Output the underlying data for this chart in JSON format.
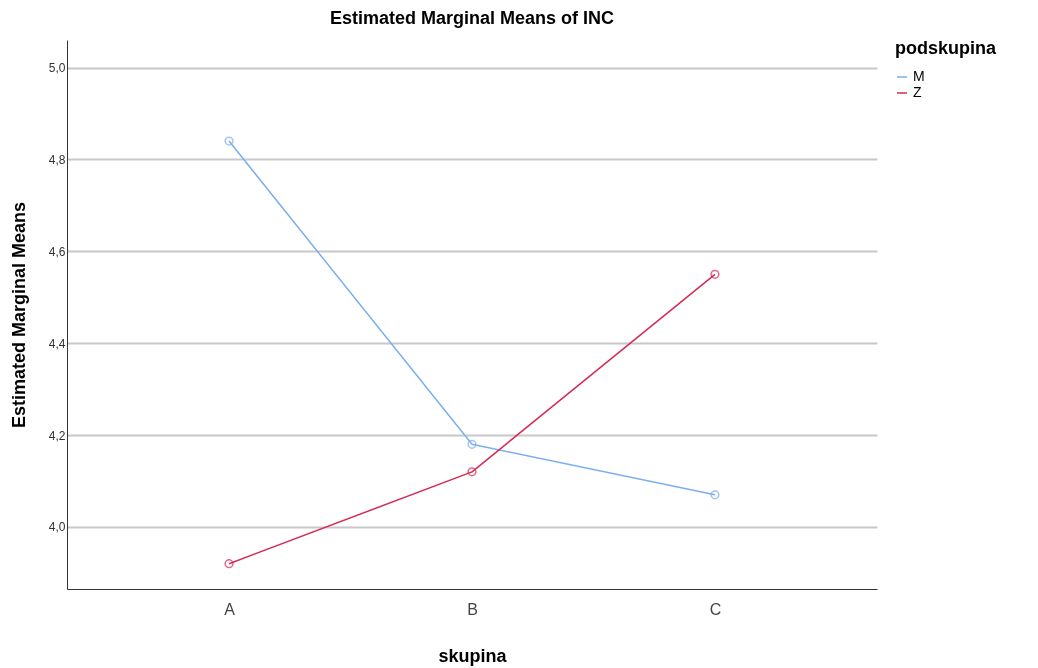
{
  "chart_data": {
    "type": "line",
    "title": "Estimated Marginal Means of INC",
    "xlabel": "skupina",
    "ylabel": "Estimated Marginal Means",
    "legend_title": "podskupina",
    "categories": [
      "A",
      "B",
      "C"
    ],
    "series": [
      {
        "name": "M",
        "color": "#7aaef0",
        "values": [
          4.84,
          4.18,
          4.07
        ]
      },
      {
        "name": "Z",
        "color": "#d42a55",
        "values": [
          3.92,
          4.12,
          4.55
        ]
      }
    ],
    "ylim": [
      3.865,
      5.06
    ],
    "yticks": [
      {
        "value": 4.0,
        "label": "4,0"
      },
      {
        "value": 4.2,
        "label": "4,2"
      },
      {
        "value": 4.4,
        "label": "4,4"
      },
      {
        "value": 4.6,
        "label": "4,6"
      },
      {
        "value": 4.8,
        "label": "4,8"
      },
      {
        "value": 5.0,
        "label": "5,0"
      }
    ],
    "grid": "y",
    "legend": "top right",
    "marker": "circle",
    "line_style": "solid"
  }
}
